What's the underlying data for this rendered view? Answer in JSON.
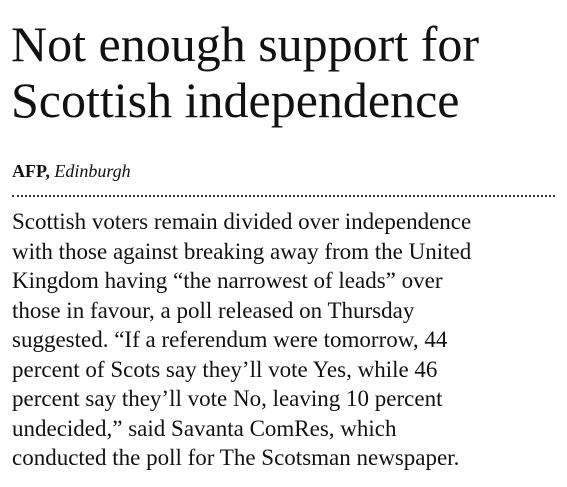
{
  "article": {
    "headline": [
      "Not enough support for",
      "Scottish independence"
    ],
    "byline": {
      "source": "AFP,",
      "location": "Edinburgh"
    },
    "body": [
      "Scottish voters remain divided over independence",
      "with those against breaking away from the United",
      "Kingdom having “the narrowest of leads” over",
      "those in favour, a poll released on Thursday",
      "suggested. “If a referendum were tomorrow, 44",
      "percent of Scots say they’ll vote Yes, while 46",
      "percent say they’ll vote No, leaving 10 percent",
      "undecided,” said Savanta ComRes, which",
      "conducted the poll for The Scotsman newspaper."
    ]
  }
}
